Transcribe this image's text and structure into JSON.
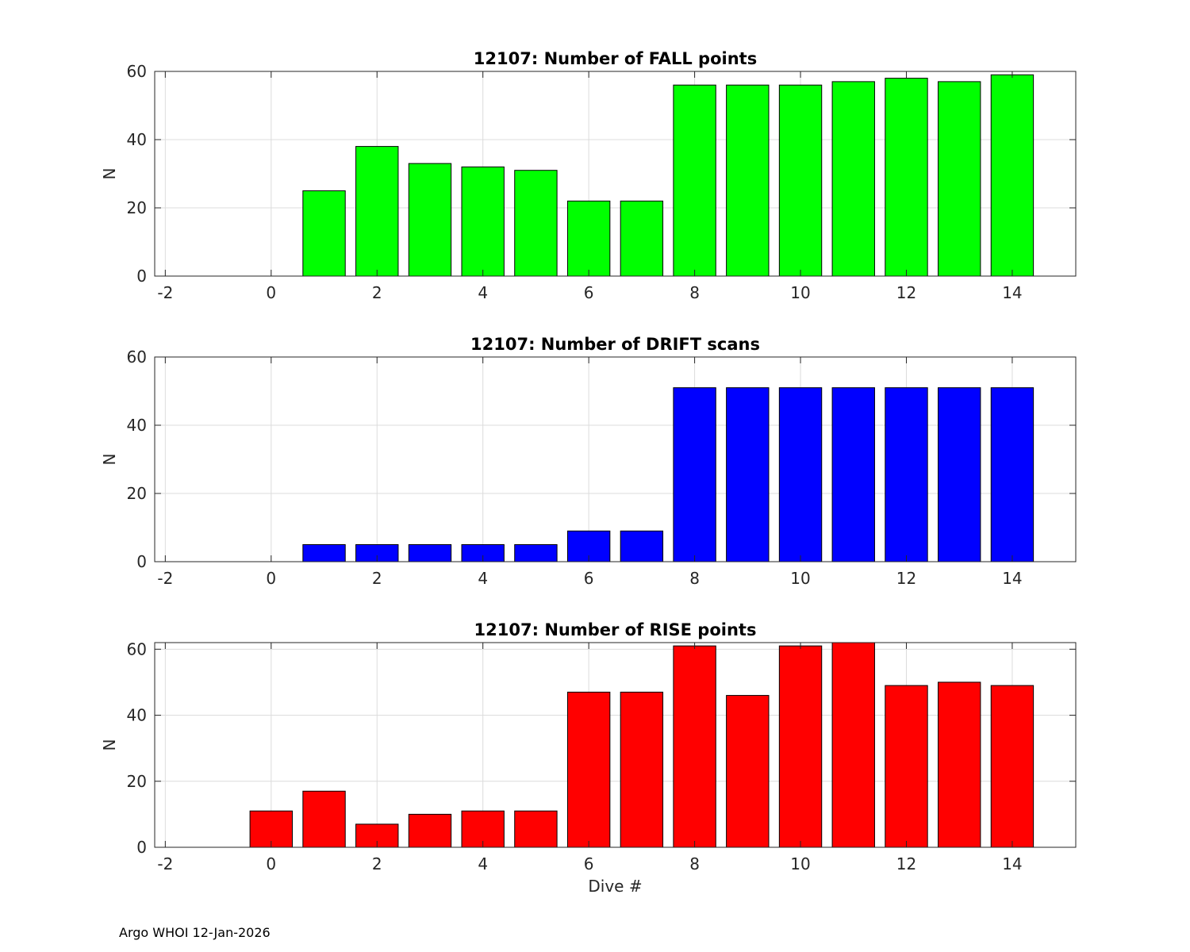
{
  "footer": "Argo WHOI 12-Jan-2026",
  "chart_data": [
    {
      "type": "bar",
      "title": "12107: Number of FALL points",
      "xlabel": "",
      "ylabel": "N",
      "color": "#00ff00",
      "x": [
        1,
        2,
        3,
        4,
        5,
        6,
        7,
        8,
        9,
        10,
        11,
        12,
        13,
        14
      ],
      "values": [
        25,
        38,
        33,
        32,
        31,
        22,
        22,
        56,
        56,
        56,
        57,
        58,
        57,
        59
      ],
      "xlim": [
        -2.2,
        15.2
      ],
      "ylim": [
        0,
        60
      ],
      "xticks": [
        "-2",
        "0",
        "2",
        "4",
        "6",
        "8",
        "10",
        "12",
        "14"
      ],
      "yticks": [
        "0",
        "20",
        "40",
        "60"
      ],
      "grid": true
    },
    {
      "type": "bar",
      "title": "12107: Number of DRIFT scans",
      "xlabel": "",
      "ylabel": "N",
      "color": "#0000ff",
      "x": [
        1,
        2,
        3,
        4,
        5,
        6,
        7,
        8,
        9,
        10,
        11,
        12,
        13,
        14
      ],
      "values": [
        5,
        5,
        5,
        5,
        5,
        9,
        9,
        51,
        51,
        51,
        51,
        51,
        51,
        51
      ],
      "xlim": [
        -2.2,
        15.2
      ],
      "ylim": [
        0,
        60
      ],
      "xticks": [
        "-2",
        "0",
        "2",
        "4",
        "6",
        "8",
        "10",
        "12",
        "14"
      ],
      "yticks": [
        "0",
        "20",
        "40",
        "60"
      ],
      "grid": true
    },
    {
      "type": "bar",
      "title": "12107: Number of RISE points",
      "xlabel": "Dive #",
      "ylabel": "N",
      "color": "#ff0000",
      "x": [
        0,
        1,
        2,
        3,
        4,
        5,
        6,
        7,
        8,
        9,
        10,
        11,
        12,
        13,
        14
      ],
      "values": [
        11,
        17,
        7,
        10,
        11,
        11,
        47,
        47,
        61,
        46,
        61,
        62,
        49,
        50,
        49
      ],
      "xlim": [
        -2.2,
        15.2
      ],
      "ylim": [
        0,
        62
      ],
      "xticks": [
        "-2",
        "0",
        "2",
        "4",
        "6",
        "8",
        "10",
        "12",
        "14"
      ],
      "yticks": [
        "0",
        "20",
        "40",
        "60"
      ],
      "grid": true
    }
  ]
}
